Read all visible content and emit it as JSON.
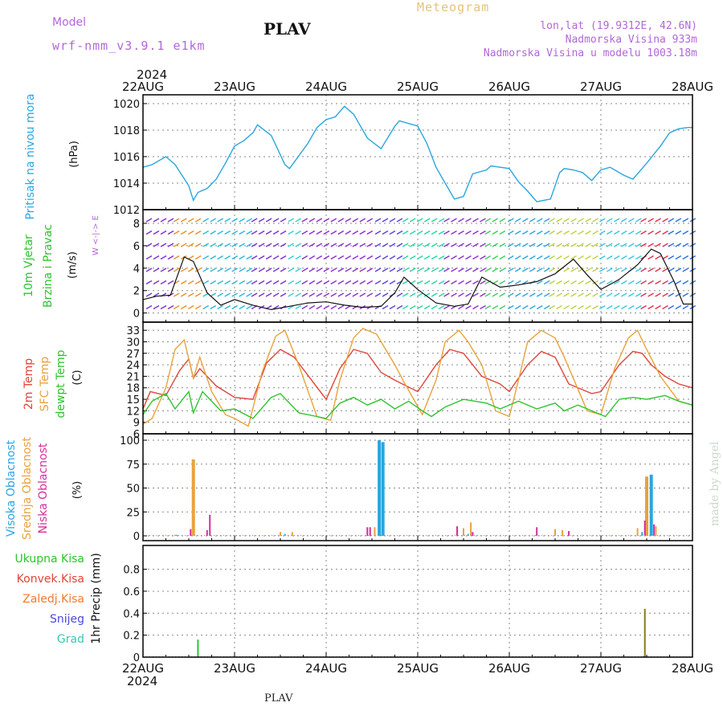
{
  "header": {
    "model_label": "Model",
    "model_name": "wrf-nmm_v3.9.1 e1km",
    "station": "PLAV",
    "meteogram": "Meteogram",
    "coords": "lon,lat (19.9312E, 42.6N)",
    "elevation": "Nadmorska Visina 933m",
    "model_elevation": "Nadmorska Visina u modelu 1003.18m",
    "year_top": "2024",
    "year_bottom": "2024",
    "footer_station": "PLAV",
    "watermark": "made by Angel"
  },
  "colors": {
    "pressure": "#2aa6e0",
    "temp2m": "#e0453a",
    "sfc": "#e8a23c",
    "dewpt": "#2ec42e",
    "high_cloud": "#2aa6e0",
    "mid_cloud": "#e8a23c",
    "low_cloud": "#d42f9a",
    "total_precip": "#2ec42e",
    "conv_precip": "#e0453a",
    "strat_precip": "#f07a30",
    "snow": "#4a4ad8",
    "hail": "#38c8b0",
    "purple_text": "#b267d8"
  },
  "chart_data": [
    {
      "type": "line",
      "panel": "pressure",
      "ylabel": "Pritisak na nivou mora",
      "unit": "(hPa)",
      "ylim": [
        1012,
        1020.3
      ],
      "yticks": [
        1012,
        1014,
        1016,
        1018,
        1020
      ],
      "x_dates": [
        "22AUG",
        "23AUG",
        "24AUG",
        "25AUG",
        "26AUG",
        "27AUG",
        "28AUG"
      ],
      "grid": true,
      "series": [
        {
          "x": [
            0,
            0.1,
            0.25,
            0.35,
            0.5,
            0.55,
            0.6,
            0.7,
            0.8,
            0.9,
            1.0,
            1.1,
            1.2,
            1.25,
            1.4,
            1.55,
            1.6,
            1.8,
            1.9,
            2.0,
            2.1,
            2.2,
            2.3,
            2.45,
            2.6,
            2.75,
            2.8,
            2.9,
            3.0,
            3.1,
            3.2,
            3.3,
            3.4,
            3.5,
            3.6,
            3.75,
            3.8,
            3.9,
            4.0,
            4.1,
            4.2,
            4.3,
            4.45,
            4.55,
            4.6,
            4.7,
            4.8,
            4.9,
            5.0,
            5.1,
            5.25,
            5.35,
            5.5,
            5.65,
            5.75,
            5.85,
            5.95,
            6.0
          ],
          "y": [
            1015.2,
            1015.4,
            1016.0,
            1015.4,
            1013.8,
            1012.7,
            1013.3,
            1013.6,
            1014.3,
            1015.5,
            1016.8,
            1017.2,
            1017.8,
            1018.4,
            1017.6,
            1015.4,
            1015.1,
            1017.0,
            1018.2,
            1018.8,
            1019.0,
            1019.8,
            1019.2,
            1017.4,
            1016.6,
            1018.3,
            1018.7,
            1018.5,
            1018.3,
            1017.0,
            1015.2,
            1014.0,
            1012.8,
            1013.0,
            1014.7,
            1015.0,
            1015.3,
            1015.2,
            1015.1,
            1014.1,
            1013.4,
            1012.6,
            1012.8,
            1014.8,
            1015.1,
            1015.0,
            1014.8,
            1014.2,
            1015.0,
            1015.2,
            1014.6,
            1014.3,
            1015.5,
            1016.8,
            1017.8,
            1018.1,
            1018.2,
            1018.2
          ]
        }
      ]
    },
    {
      "type": "line",
      "panel": "wind",
      "ylabel": "10m Vjetar Brzina i Pravac",
      "unit": "(m/s)",
      "compass": "W <-|-> E",
      "ylim": [
        -0.6,
        9
      ],
      "yticks": [
        0,
        2,
        4,
        6,
        8
      ],
      "x_dates": [
        "22AUG",
        "23AUG",
        "24AUG",
        "25AUG",
        "26AUG",
        "27AUG",
        "28AUG"
      ],
      "grid": true,
      "series": [
        {
          "name": "speed",
          "x": [
            0,
            0.15,
            0.3,
            0.45,
            0.55,
            0.7,
            0.85,
            1.0,
            1.2,
            1.4,
            1.6,
            1.8,
            2.0,
            2.2,
            2.4,
            2.6,
            2.75,
            2.85,
            3.0,
            3.2,
            3.4,
            3.55,
            3.7,
            3.9,
            4.1,
            4.3,
            4.5,
            4.7,
            4.85,
            5.0,
            5.2,
            5.4,
            5.55,
            5.65,
            5.8,
            5.9,
            6.0
          ],
          "y": [
            1.2,
            1.5,
            1.6,
            5.0,
            4.6,
            1.8,
            0.7,
            1.2,
            0.7,
            0.3,
            0.6,
            0.9,
            1.0,
            0.7,
            0.5,
            0.6,
            1.8,
            3.2,
            2.1,
            0.9,
            0.6,
            0.8,
            3.2,
            2.3,
            2.5,
            2.8,
            3.5,
            4.8,
            3.4,
            2.1,
            3.0,
            4.3,
            5.7,
            5.3,
            2.8,
            0.8,
            0.8
          ]
        }
      ],
      "barb_bands": [
        {
          "x0": 0,
          "x1": 0.3,
          "color": "#7a2fd0"
        },
        {
          "x0": 0.3,
          "x1": 0.62,
          "color": "#e89028"
        },
        {
          "x0": 0.62,
          "x1": 1.15,
          "color": "#28b8d8"
        },
        {
          "x0": 1.15,
          "x1": 1.55,
          "color": "#7a2fd0"
        },
        {
          "x0": 1.55,
          "x1": 1.7,
          "color": "#38d0d0"
        },
        {
          "x0": 1.7,
          "x1": 2.5,
          "color": "#8a2fd0"
        },
        {
          "x0": 2.5,
          "x1": 2.8,
          "color": "#5a40e0"
        },
        {
          "x0": 2.8,
          "x1": 3.25,
          "color": "#24d8a0"
        },
        {
          "x0": 3.25,
          "x1": 3.7,
          "color": "#8a2fd0"
        },
        {
          "x0": 3.7,
          "x1": 3.95,
          "color": "#3ad060"
        },
        {
          "x0": 3.95,
          "x1": 4.4,
          "color": "#2aa6e0"
        },
        {
          "x0": 4.4,
          "x1": 4.95,
          "color": "#c0d040"
        },
        {
          "x0": 4.95,
          "x1": 5.4,
          "color": "#38c8e0"
        },
        {
          "x0": 5.4,
          "x1": 5.7,
          "color": "#e03050"
        },
        {
          "x0": 5.7,
          "x1": 6.0,
          "color": "#2a70e0"
        }
      ]
    },
    {
      "type": "line",
      "panel": "temperature",
      "ylabel_lines": [
        "2m Temp",
        "SFC Temp",
        "dewpt Temp"
      ],
      "unit": "(C)",
      "ylim": [
        6,
        34.5
      ],
      "yticks": [
        6,
        9,
        12,
        15,
        18,
        21,
        24,
        27,
        30,
        33
      ],
      "x_dates": [
        "22AUG",
        "23AUG",
        "24AUG",
        "25AUG",
        "26AUG",
        "27AUG",
        "28AUG"
      ],
      "grid": true,
      "series": [
        {
          "name": "2m Temp",
          "x": [
            0,
            0.08,
            0.25,
            0.4,
            0.5,
            0.55,
            0.62,
            0.8,
            1.0,
            1.2,
            1.35,
            1.5,
            1.65,
            2.0,
            2.15,
            2.3,
            2.45,
            2.6,
            2.75,
            3.0,
            3.2,
            3.35,
            3.5,
            3.7,
            3.9,
            4.0,
            4.2,
            4.35,
            4.5,
            4.65,
            4.9,
            5.0,
            5.2,
            5.35,
            5.45,
            5.55,
            5.7,
            5.85,
            6.0
          ],
          "y": [
            12.5,
            17.0,
            16.0,
            22.5,
            25.5,
            20.5,
            23.0,
            18.5,
            15.5,
            15.0,
            24.5,
            28.0,
            26.0,
            15.0,
            23.0,
            28.0,
            27.0,
            22.0,
            20.0,
            17.0,
            24.0,
            28.0,
            27.0,
            21.0,
            19.0,
            17.0,
            24.0,
            27.5,
            26.0,
            19.0,
            16.5,
            17.0,
            24.0,
            27.5,
            27.0,
            24.0,
            21.0,
            19.0,
            18.0
          ]
        },
        {
          "name": "SFC Temp",
          "x": [
            0,
            0.1,
            0.25,
            0.35,
            0.45,
            0.55,
            0.62,
            0.75,
            0.9,
            1.0,
            1.15,
            1.3,
            1.45,
            1.55,
            1.7,
            1.9,
            2.05,
            2.15,
            2.3,
            2.4,
            2.55,
            2.75,
            2.85,
            3.05,
            3.2,
            3.3,
            3.45,
            3.55,
            3.7,
            3.85,
            4.0,
            4.1,
            4.2,
            4.35,
            4.5,
            4.6,
            4.85,
            5.0,
            5.15,
            5.3,
            5.4,
            5.5,
            5.65,
            5.85,
            6.0
          ],
          "y": [
            8.5,
            10.0,
            18.0,
            28.0,
            30.5,
            20.5,
            26.0,
            17.0,
            11.0,
            10.0,
            8.0,
            22.0,
            31.5,
            33.0,
            24.0,
            10.5,
            9.5,
            20.0,
            31.0,
            33.5,
            32.0,
            24.0,
            19.5,
            11.0,
            20.0,
            30.0,
            33.0,
            30.0,
            24.0,
            12.0,
            10.5,
            20.0,
            30.0,
            33.0,
            31.0,
            26.0,
            12.0,
            11.0,
            23.0,
            31.0,
            33.0,
            28.0,
            21.0,
            14.5,
            13.5
          ]
        },
        {
          "name": "dewpt Temp",
          "x": [
            0,
            0.1,
            0.25,
            0.35,
            0.5,
            0.55,
            0.65,
            0.85,
            1.0,
            1.2,
            1.4,
            1.5,
            1.7,
            2.0,
            2.15,
            2.3,
            2.45,
            2.6,
            2.75,
            2.9,
            3.05,
            3.15,
            3.3,
            3.5,
            3.75,
            3.9,
            4.1,
            4.3,
            4.5,
            4.6,
            4.75,
            4.9,
            5.05,
            5.2,
            5.35,
            5.5,
            5.7,
            5.85,
            6.0
          ],
          "y": [
            11.0,
            14.5,
            16.5,
            12.5,
            17.0,
            11.5,
            17.0,
            12.0,
            12.5,
            10.0,
            15.5,
            16.5,
            11.5,
            10.0,
            14.0,
            15.5,
            13.5,
            15.0,
            12.5,
            14.5,
            12.0,
            10.5,
            13.0,
            15.0,
            14.0,
            12.5,
            14.5,
            12.5,
            14.0,
            12.0,
            13.5,
            12.0,
            10.5,
            15.0,
            15.5,
            15.0,
            16.0,
            14.5,
            13.5
          ]
        }
      ]
    },
    {
      "type": "bar",
      "panel": "clouds",
      "ylabel_lines": [
        "Visoka Oblacnost",
        "Srednja Oblacnost",
        "Niska Oblacnost"
      ],
      "unit": "(%)",
      "ylim": [
        0,
        100
      ],
      "yticks": [
        0,
        25,
        50,
        75,
        100
      ],
      "x_dates": [
        "22AUG",
        "23AUG",
        "24AUG",
        "25AUG",
        "26AUG",
        "27AUG",
        "28AUG"
      ],
      "grid": true,
      "series": [
        {
          "name": "Visoka Oblacnost",
          "x": [
            0.37,
            1.55,
            2.58,
            2.62,
            3.55,
            3.6,
            5.45,
            5.55
          ],
          "values": [
            1,
            2,
            100,
            98,
            2,
            3,
            4,
            64
          ]
        },
        {
          "name": "Srednja Oblacnost",
          "x": [
            0.35,
            0.55,
            1.5,
            1.63,
            2.53,
            3.5,
            3.58,
            4.5,
            4.58,
            5.4,
            5.5,
            5.6
          ],
          "values": [
            1,
            80,
            4,
            4,
            9,
            8,
            14,
            7,
            6,
            8,
            62,
            10
          ]
        },
        {
          "name": "Niska Oblacnost",
          "x": [
            0.52,
            0.7,
            0.73,
            2.45,
            2.48,
            3.43,
            3.6,
            4.3,
            4.65,
            5.48,
            5.58
          ],
          "values": [
            7,
            6,
            22,
            9,
            9,
            10,
            4,
            9,
            5,
            16,
            12
          ]
        }
      ]
    },
    {
      "type": "bar",
      "panel": "precipitation",
      "ylabel": "1hr Precip (mm)",
      "legend": [
        "Ukupna Kisa",
        "Konvek.Kisa",
        "Zaledj.Kisa",
        "Snijeg",
        "Grad"
      ],
      "ylim": [
        0,
        0.98
      ],
      "yticks": [
        0,
        0.2,
        0.4,
        0.6,
        0.8
      ],
      "x_dates": [
        "22AUG",
        "23AUG",
        "24AUG",
        "25AUG",
        "26AUG",
        "27AUG",
        "28AUG"
      ],
      "grid": true,
      "series": [
        {
          "name": "Ukupna Kisa",
          "x": [
            0.6
          ],
          "values": [
            0.16
          ]
        },
        {
          "name": "Zaledj.Kisa",
          "x": [
            5.47,
            5.48
          ],
          "values": [
            0.01,
            0.44
          ]
        }
      ]
    }
  ]
}
